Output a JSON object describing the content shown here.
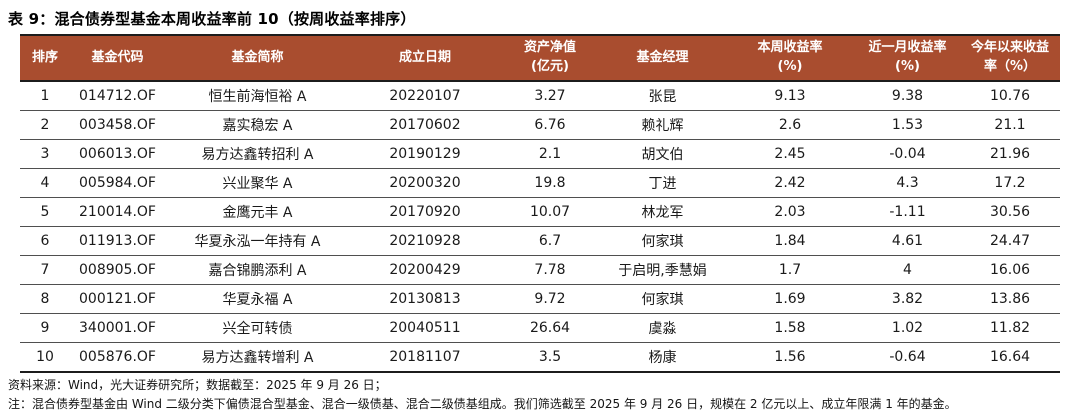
{
  "title": "表 9：混合债券型基金本周收益率前 10（按周收益率排序）",
  "table": {
    "columns": [
      "排序",
      "基金代码",
      "基金简称",
      "成立日期",
      "资产净值\n(亿元)",
      "基金经理",
      "本周收益率\n(%)",
      "近一月收益率\n(%)",
      "今年以来收益\n率（%）"
    ],
    "rows": [
      [
        "1",
        "014712.OF",
        "恒生前海恒裕 A",
        "20220107",
        "3.27",
        "张昆",
        "9.13",
        "9.38",
        "10.76"
      ],
      [
        "2",
        "003458.OF",
        "嘉实稳宏 A",
        "20170602",
        "6.76",
        "赖礼辉",
        "2.6",
        "1.53",
        "21.1"
      ],
      [
        "3",
        "006013.OF",
        "易方达鑫转招利 A",
        "20190129",
        "2.1",
        "胡文伯",
        "2.45",
        "-0.04",
        "21.96"
      ],
      [
        "4",
        "005984.OF",
        "兴业聚华 A",
        "20200320",
        "19.8",
        "丁进",
        "2.42",
        "4.3",
        "17.2"
      ],
      [
        "5",
        "210014.OF",
        "金鹰元丰 A",
        "20170920",
        "10.07",
        "林龙军",
        "2.03",
        "-1.11",
        "30.56"
      ],
      [
        "6",
        "011913.OF",
        "华夏永泓一年持有 A",
        "20210928",
        "6.7",
        "何家琪",
        "1.84",
        "4.61",
        "24.47"
      ],
      [
        "7",
        "008905.OF",
        "嘉合锦鹏添利 A",
        "20200429",
        "7.78",
        "于启明,季慧娟",
        "1.7",
        "4",
        "16.06"
      ],
      [
        "8",
        "000121.OF",
        "华夏永福 A",
        "20130813",
        "9.72",
        "何家琪",
        "1.69",
        "3.82",
        "13.86"
      ],
      [
        "9",
        "340001.OF",
        "兴全可转债",
        "20040511",
        "26.64",
        "虞淼",
        "1.58",
        "1.02",
        "11.82"
      ],
      [
        "10",
        "005876.OF",
        "易方达鑫转增利 A",
        "20181107",
        "3.5",
        "杨康",
        "1.56",
        "-0.64",
        "16.64"
      ]
    ]
  },
  "notes": {
    "line1": "资料来源：Wind，光大证券研究所；数据截至：2025 年 9 月 26 日；",
    "line2": "注：混合债券型基金由 Wind 二级分类下偏债混合型基金、混合一级债基、混合二级债基组成。我们筛选截至 2025 年 9 月 26 日，规模在 2 亿元以上、成立年限满 1 年的基金。"
  },
  "colors": {
    "header_bg": "#a94d2f",
    "header_text": "#ffffff",
    "border_dark": "#1c1c1c",
    "row_line": "#4f4f4f"
  }
}
